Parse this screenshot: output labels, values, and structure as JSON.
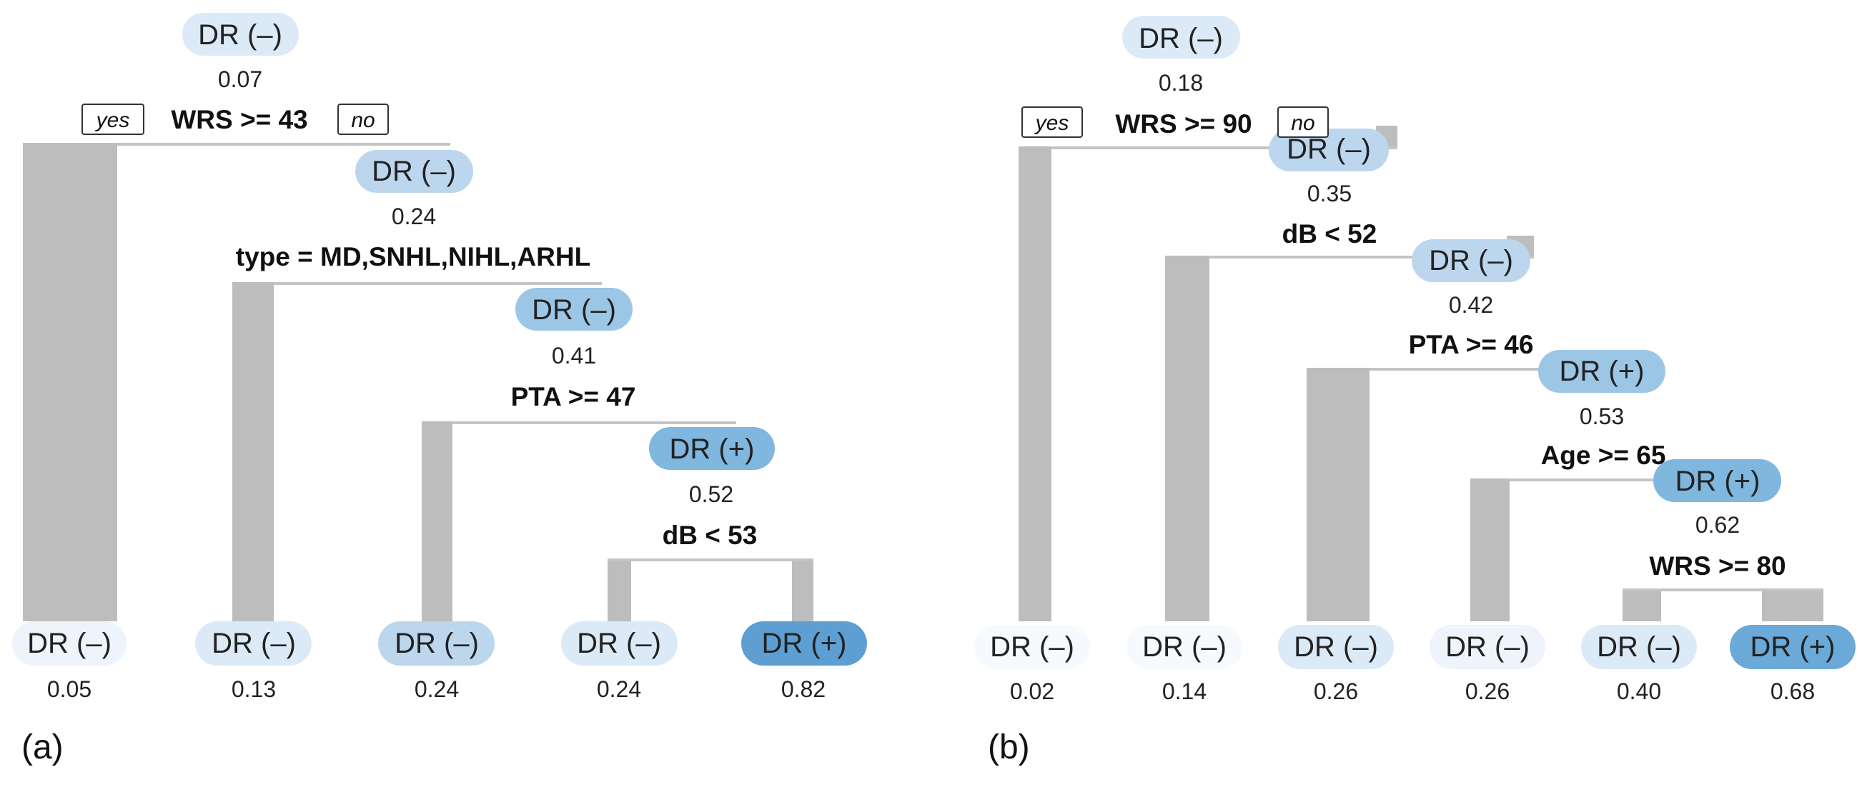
{
  "palette": {
    "lvl0": "#eef4fb",
    "lvl1": "#dce9f6",
    "lvl2": "#bcd6ee",
    "lvl3": "#9cc6e6",
    "lvl4": "#7fb7df",
    "lvl5": "#5d9fd3"
  },
  "panels": {
    "a": {
      "label": "(a)",
      "yes": "yes",
      "no": "no",
      "internal_nodes": [
        {
          "class_label": "DR (–)",
          "value": "0.07",
          "split": "WRS >= 43",
          "color": "#dce9f6"
        },
        {
          "class_label": "DR (–)",
          "value": "0.24",
          "split": "type = MD,SNHL,NIHL,ARHL",
          "color": "#bcd6ee"
        },
        {
          "class_label": "DR (–)",
          "value": "0.41",
          "split": "PTA >= 47",
          "color": "#9cc6e6"
        },
        {
          "class_label": "DR (+)",
          "value": "0.52",
          "split": "dB < 53",
          "color": "#7fb7df"
        }
      ],
      "leaves": [
        {
          "class_label": "DR (–)",
          "value": "0.05",
          "color": "#eef4fb"
        },
        {
          "class_label": "DR (–)",
          "value": "0.13",
          "color": "#dce9f6"
        },
        {
          "class_label": "DR (–)",
          "value": "0.24",
          "color": "#bcd6ee"
        },
        {
          "class_label": "DR (–)",
          "value": "0.24",
          "color": "#dce9f6"
        },
        {
          "class_label": "DR (+)",
          "value": "0.82",
          "color": "#5d9fd3"
        }
      ]
    },
    "b": {
      "label": "(b)",
      "yes": "yes",
      "no": "no",
      "internal_nodes": [
        {
          "class_label": "DR (–)",
          "value": "0.18",
          "split": "WRS >= 90",
          "color": "#dce9f6"
        },
        {
          "class_label": "DR (–)",
          "value": "0.35",
          "split": "dB < 52",
          "color": "#bcd6ee"
        },
        {
          "class_label": "DR (–)",
          "value": "0.42",
          "split": "PTA >= 46",
          "color": "#bcd6ee"
        },
        {
          "class_label": "DR (+)",
          "value": "0.53",
          "split": "Age >= 65",
          "color": "#9cc6e6"
        },
        {
          "class_label": "DR (+)",
          "value": "0.62",
          "split": "WRS >= 80",
          "color": "#7fb7df"
        }
      ],
      "leaves": [
        {
          "class_label": "DR (–)",
          "value": "0.02",
          "color": "#f6f9fd"
        },
        {
          "class_label": "DR (–)",
          "value": "0.14",
          "color": "#f6f9fd"
        },
        {
          "class_label": "DR (–)",
          "value": "0.26",
          "color": "#dce9f6"
        },
        {
          "class_label": "DR (–)",
          "value": "0.26",
          "color": "#eef4fb"
        },
        {
          "class_label": "DR (–)",
          "value": "0.40",
          "color": "#dce9f6"
        },
        {
          "class_label": "DR (+)",
          "value": "0.68",
          "color": "#6aa9d8"
        }
      ]
    }
  }
}
